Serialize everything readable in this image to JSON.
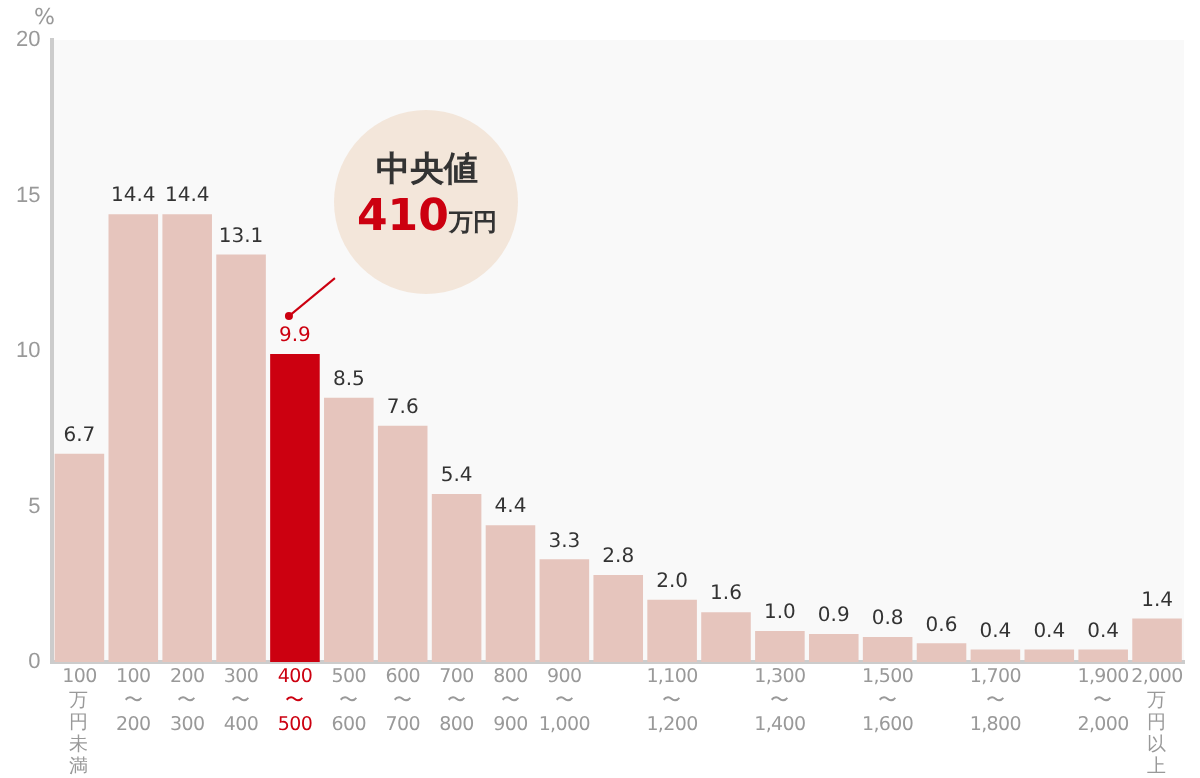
{
  "chart_data": {
    "type": "bar",
    "ylabel": "%",
    "categories": [
      "100\n万円未満",
      "100\n〜\n200",
      "200\n〜\n300",
      "300\n〜\n400",
      "400\n〜\n500",
      "500\n〜\n600",
      "600\n〜\n700",
      "700\n〜\n800",
      "800\n〜\n900",
      "900\n〜\n1,000",
      null,
      "1,100\n〜\n1,200",
      null,
      "1,300\n〜\n1,400",
      null,
      "1,500\n〜\n1,600",
      null,
      "1,700\n〜\n1,800",
      null,
      "1,900\n〜\n2,000",
      "2,000\n万円以上"
    ],
    "values": [
      6.7,
      14.4,
      14.4,
      13.1,
      9.9,
      8.5,
      7.6,
      5.4,
      4.4,
      3.3,
      2.8,
      2.0,
      1.6,
      1.0,
      0.9,
      0.8,
      0.6,
      0.4,
      0.4,
      0.4,
      1.4
    ],
    "colors": [
      "#e6c5bd",
      "#e6c5bd",
      "#e6c5bd",
      "#e6c5bd",
      "#cc0010",
      "#e6c5bd",
      "#e6c5bd",
      "#e6c5bd",
      "#e6c5bd",
      "#e6c5bd",
      "#e6c5bd",
      "#e6c5bd",
      "#e6c5bd",
      "#e6c5bd",
      "#e6c5bd",
      "#e6c5bd",
      "#e6c5bd",
      "#e6c5bd",
      "#e6c5bd",
      "#e6c5bd",
      "#e6c5bd"
    ],
    "value_labels": [
      "6.7",
      "14.4",
      "14.4",
      "13.1",
      "9.9",
      "8.5",
      "7.6",
      "5.4",
      "4.4",
      "3.3",
      "2.8",
      "2.0",
      "1.6",
      "1.0",
      "0.9",
      "0.8",
      "0.6",
      "0.4",
      "0.4",
      "0.4",
      "1.4"
    ],
    "ylim": [
      0,
      20
    ],
    "yticks": [
      0,
      5,
      10,
      15,
      20
    ],
    "grid": false,
    "annotations": [
      {
        "text": "中央値 410万円",
        "x": "400\n〜\n500",
        "y": 9.9
      }
    ]
  }
}
